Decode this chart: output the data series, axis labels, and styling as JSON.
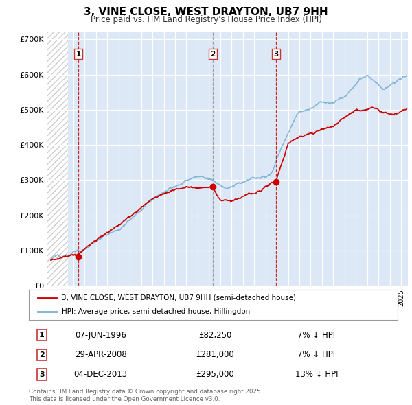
{
  "title": "3, VINE CLOSE, WEST DRAYTON, UB7 9HH",
  "subtitle": "Price paid vs. HM Land Registry's House Price Index (HPI)",
  "legend_line1": "3, VINE CLOSE, WEST DRAYTON, UB7 9HH (semi-detached house)",
  "legend_line2": "HPI: Average price, semi-detached house, Hillingdon",
  "line_color_red": "#cc0000",
  "hpi_color": "#7ab0d4",
  "plot_bg": "#dce8f5",
  "transactions": [
    {
      "num": 1,
      "date_label": "07-JUN-1996",
      "year": 1996.44,
      "price": 82250,
      "pct": "7% ↓ HPI"
    },
    {
      "num": 2,
      "date_label": "29-APR-2008",
      "year": 2008.33,
      "price": 281000,
      "pct": "7% ↓ HPI"
    },
    {
      "num": 3,
      "date_label": "04-DEC-2013",
      "year": 2013.92,
      "price": 295000,
      "pct": "13% ↓ HPI"
    }
  ],
  "ylim": [
    0,
    720000
  ],
  "xlim_start": 1993.7,
  "xlim_end": 2025.6,
  "yticks": [
    0,
    100000,
    200000,
    300000,
    400000,
    500000,
    600000,
    700000
  ],
  "ytick_labels": [
    "£0",
    "£100K",
    "£200K",
    "£300K",
    "£400K",
    "£500K",
    "£600K",
    "£700K"
  ],
  "footer": "Contains HM Land Registry data © Crown copyright and database right 2025.\nThis data is licensed under the Open Government Licence v3.0.",
  "hatch_end_year": 1995.5
}
